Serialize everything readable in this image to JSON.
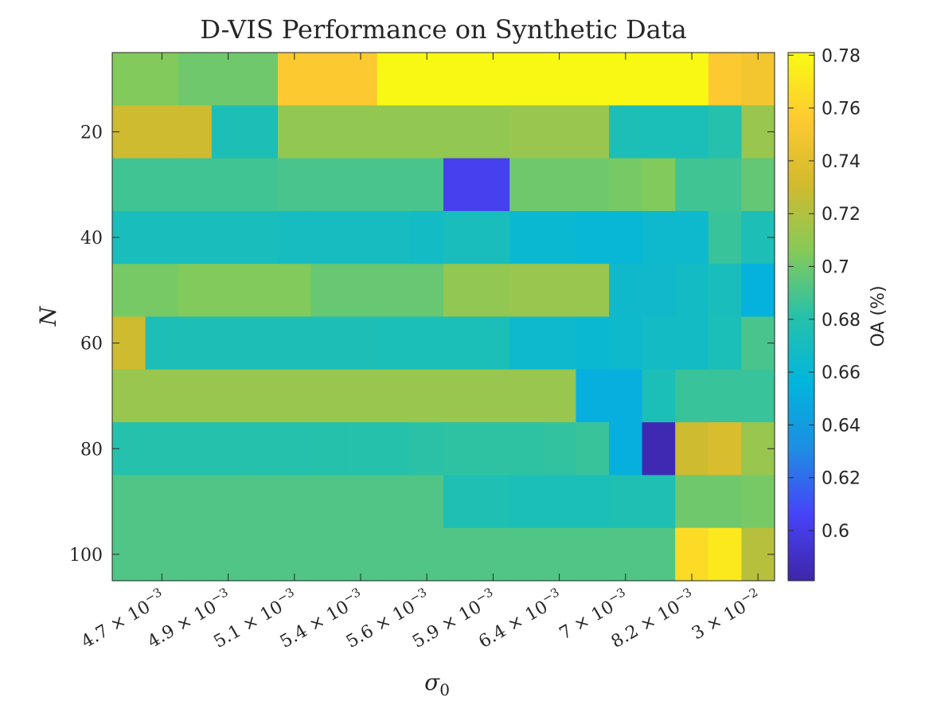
{
  "chart_data": {
    "type": "heatmap",
    "title": "D-VIS Performance on Synthetic Data",
    "xlabel": "σ",
    "xlabel_subscript": "0",
    "ylabel": "N",
    "x_ticks": [
      {
        "mant": "4.7",
        "exp": "−3"
      },
      {
        "mant": "4.9",
        "exp": "−3"
      },
      {
        "mant": "5.1",
        "exp": "−3"
      },
      {
        "mant": "5.4",
        "exp": "−3"
      },
      {
        "mant": "5.6",
        "exp": "−3"
      },
      {
        "mant": "5.9",
        "exp": "−3"
      },
      {
        "mant": "6.4",
        "exp": "−3"
      },
      {
        "mant": "7",
        "exp": "−3"
      },
      {
        "mant": "8.2",
        "exp": "−3"
      },
      {
        "mant": "3",
        "exp": "−2"
      }
    ],
    "x_tick_joiner": " × 10",
    "y_ticks": [
      "20",
      "40",
      "60",
      "80",
      "100"
    ],
    "y_tick_rows": [
      2,
      4,
      6,
      8,
      10
    ],
    "colorbar": {
      "label": "OA (%)",
      "range": [
        0.581,
        0.781
      ],
      "ticks": [
        "0.6",
        "0.62",
        "0.64",
        "0.66",
        "0.68",
        "0.7",
        "0.72",
        "0.74",
        "0.76",
        "0.78"
      ],
      "tick_values": [
        0.6,
        0.62,
        0.64,
        0.66,
        0.68,
        0.7,
        0.72,
        0.74,
        0.76,
        0.78
      ],
      "colormap": [
        "#3e26a8",
        "#4743f8",
        "#1e8ee2",
        "#02b5dd",
        "#26c1aa",
        "#86ca58",
        "#d1ba2e",
        "#feca31",
        "#f9fa14"
      ]
    },
    "n_cols": 20,
    "n_rows": 10,
    "values": [
      [
        0.705,
        0.705,
        0.7,
        0.7,
        0.7,
        0.755,
        0.755,
        0.755,
        0.78,
        0.78,
        0.78,
        0.78,
        0.78,
        0.78,
        0.78,
        0.78,
        0.78,
        0.78,
        0.755,
        0.75
      ],
      [
        0.73,
        0.73,
        0.73,
        0.675,
        0.675,
        0.71,
        0.71,
        0.71,
        0.71,
        0.71,
        0.71,
        0.71,
        0.712,
        0.712,
        0.712,
        0.675,
        0.674,
        0.674,
        0.68,
        0.712
      ],
      [
        0.688,
        0.688,
        0.688,
        0.688,
        0.688,
        0.69,
        0.69,
        0.69,
        0.69,
        0.69,
        0.603,
        0.603,
        0.7,
        0.7,
        0.7,
        0.702,
        0.705,
        0.688,
        0.688,
        0.697
      ],
      [
        0.672,
        0.672,
        0.672,
        0.672,
        0.672,
        0.67,
        0.67,
        0.67,
        0.67,
        0.668,
        0.672,
        0.672,
        0.662,
        0.662,
        0.66,
        0.66,
        0.664,
        0.664,
        0.686,
        0.675
      ],
      [
        0.702,
        0.702,
        0.705,
        0.705,
        0.705,
        0.705,
        0.698,
        0.698,
        0.698,
        0.698,
        0.71,
        0.71,
        0.712,
        0.712,
        0.712,
        0.665,
        0.665,
        0.668,
        0.672,
        0.654
      ],
      [
        0.73,
        0.675,
        0.675,
        0.675,
        0.675,
        0.675,
        0.675,
        0.675,
        0.674,
        0.674,
        0.674,
        0.674,
        0.664,
        0.664,
        0.662,
        0.664,
        0.668,
        0.668,
        0.674,
        0.69
      ],
      [
        0.712,
        0.712,
        0.712,
        0.712,
        0.712,
        0.712,
        0.712,
        0.712,
        0.712,
        0.712,
        0.712,
        0.712,
        0.712,
        0.712,
        0.652,
        0.652,
        0.674,
        0.686,
        0.686,
        0.686
      ],
      [
        0.68,
        0.68,
        0.68,
        0.68,
        0.68,
        0.68,
        0.681,
        0.681,
        0.681,
        0.682,
        0.683,
        0.683,
        0.683,
        0.684,
        0.686,
        0.652,
        0.584,
        0.73,
        0.735,
        0.712
      ],
      [
        0.692,
        0.692,
        0.692,
        0.692,
        0.692,
        0.692,
        0.692,
        0.692,
        0.692,
        0.692,
        0.676,
        0.676,
        0.674,
        0.674,
        0.674,
        0.676,
        0.676,
        0.7,
        0.7,
        0.702
      ],
      [
        0.692,
        0.692,
        0.692,
        0.692,
        0.692,
        0.692,
        0.692,
        0.692,
        0.692,
        0.692,
        0.692,
        0.692,
        0.692,
        0.692,
        0.692,
        0.692,
        0.692,
        0.765,
        0.772,
        0.722
      ]
    ]
  }
}
